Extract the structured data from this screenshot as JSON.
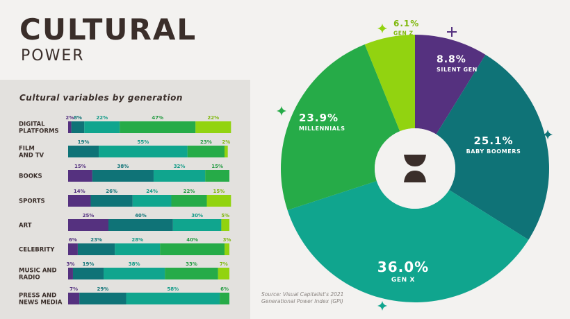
{
  "header": {
    "title": "CULTURAL",
    "subtitle": "POWER"
  },
  "bar_panel": {
    "title": "Cultural variables by generation"
  },
  "source": {
    "line1": "Source: Visual Capitalist's 2021",
    "line2": "Generational Power Index (GPI)"
  },
  "colors": {
    "silent_gen": "#55317f",
    "baby_boomers": "#0f7377",
    "gen_x": "#10a58e",
    "millennials": "#26ab48",
    "gen_z": "#92d310",
    "title": "#3a2e2a",
    "panel_bg": "#e3e1de",
    "page_bg": "#f3f2f0"
  },
  "chart_data": [
    {
      "type": "bar",
      "orientation": "horizontal-stacked",
      "title": "Cultural variables by generation",
      "categories": [
        "DIGITAL PLATFORMS",
        "FILM AND TV",
        "BOOKS",
        "SPORTS",
        "ART",
        "CELEBRITY",
        "MUSIC AND RADIO",
        "PRESS AND NEWS MEDIA"
      ],
      "series": [
        {
          "key": "silent_gen",
          "values": [
            2,
            0,
            15,
            14,
            25,
            6,
            3,
            7
          ],
          "labels": [
            "2%",
            "",
            "15%",
            "14%",
            "25%",
            "6%",
            "3%",
            "7%"
          ]
        },
        {
          "key": "baby_boomers",
          "values": [
            8,
            19,
            38,
            26,
            40,
            23,
            19,
            29
          ],
          "labels": [
            "8%",
            "19%",
            "38%",
            "26%",
            "40%",
            "23%",
            "19%",
            "29%"
          ]
        },
        {
          "key": "gen_x",
          "values": [
            22,
            55,
            32,
            24,
            30,
            28,
            38,
            58
          ],
          "labels": [
            "22%",
            "55%",
            "32%",
            "24%",
            "30%",
            "28%",
            "38%",
            "58%"
          ]
        },
        {
          "key": "millennials",
          "values": [
            47,
            23,
            15,
            22,
            0,
            40,
            33,
            6
          ],
          "labels": [
            "47%",
            "23%",
            "15%",
            "22%",
            "",
            "40%",
            "33%",
            "6%"
          ]
        },
        {
          "key": "gen_z",
          "values": [
            22,
            2,
            0,
            15,
            5,
            3,
            7,
            0
          ],
          "labels": [
            "22%",
            "2%",
            "",
            "15%",
            "5%",
            "3%",
            "7%",
            ""
          ]
        }
      ]
    },
    {
      "type": "pie",
      "style": "donut",
      "slices": [
        {
          "key": "silent_gen",
          "label": "SILENT GEN",
          "value": 8.8,
          "value_label": "8.8%"
        },
        {
          "key": "baby_boomers",
          "label": "BABY BOOMERS",
          "value": 25.1,
          "value_label": "25.1%"
        },
        {
          "key": "gen_x",
          "label": "GEN X",
          "value": 36.0,
          "value_label": "36.0%"
        },
        {
          "key": "millennials",
          "label": "MILLENNIALS",
          "value": 23.9,
          "value_label": "23.9%"
        },
        {
          "key": "gen_z",
          "label": "GEN Z",
          "value": 6.1,
          "value_label": "6.1%"
        }
      ]
    }
  ]
}
